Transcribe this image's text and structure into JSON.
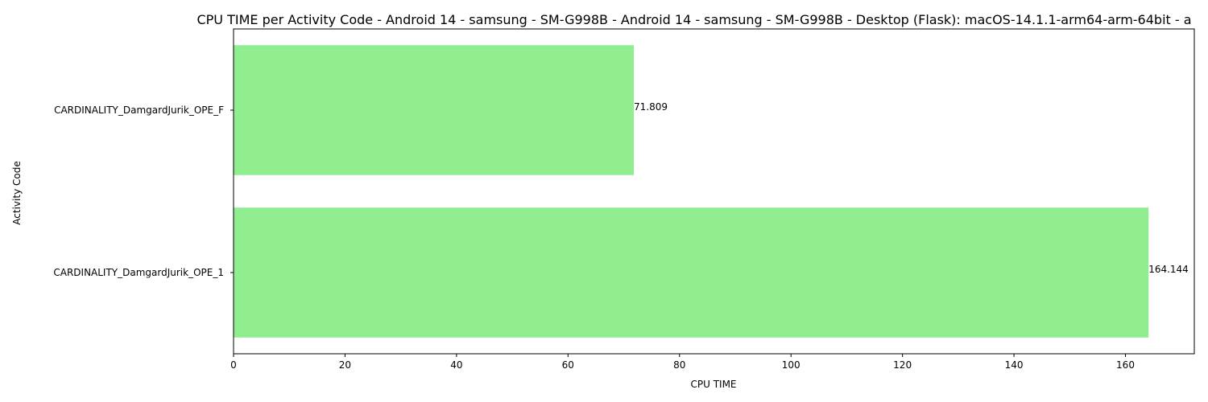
{
  "chart_data": {
    "type": "bar",
    "orientation": "horizontal",
    "title": "CPU TIME per Activity Code - Android 14 - samsung - SM-G998B - Android 14 - samsung - SM-G998B - Desktop (Flask): macOS-14.1.1-arm64-arm-64bit - a",
    "xlabel": "CPU TIME",
    "ylabel": "Activity Code",
    "categories": [
      "CARDINALITY_DamgardJurik_OPE_F",
      "CARDINALITY_DamgardJurik_OPE_1"
    ],
    "values": [
      71.809,
      164.144
    ],
    "value_labels": [
      "71.809",
      "164.144"
    ],
    "xlim": [
      0,
      172.35
    ],
    "xticks": [
      0,
      20,
      40,
      60,
      80,
      100,
      120,
      140,
      160
    ],
    "xtick_labels": [
      "0",
      "20",
      "40",
      "60",
      "80",
      "100",
      "120",
      "140",
      "160"
    ],
    "bar_color": "#90ee90",
    "grid": false,
    "legend": "none"
  }
}
